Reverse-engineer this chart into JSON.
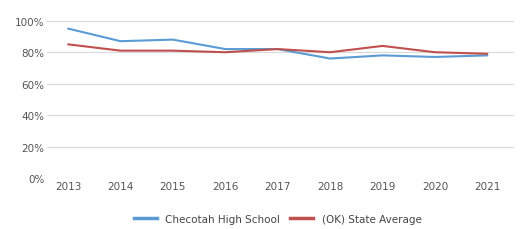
{
  "years": [
    2013,
    2014,
    2015,
    2016,
    2017,
    2018,
    2019,
    2020,
    2021
  ],
  "checotah": [
    0.95,
    0.87,
    0.88,
    0.82,
    0.82,
    0.76,
    0.78,
    0.77,
    0.78
  ],
  "ok_state": [
    0.85,
    0.81,
    0.81,
    0.8,
    0.82,
    0.8,
    0.84,
    0.8,
    0.79
  ],
  "checotah_color": "#5b9bd5",
  "ok_state_color": "#c0504d",
  "grid_color": "#d9d9d9",
  "ylim": [
    0,
    1.05
  ],
  "yticks": [
    0.0,
    0.2,
    0.4,
    0.6,
    0.8,
    1.0
  ],
  "ytick_labels": [
    "0%",
    "20%",
    "40%",
    "60%",
    "80%",
    "100%"
  ],
  "legend_checotah": "Checotah High School",
  "legend_ok": "(OK) State Average",
  "line_width": 1.5
}
